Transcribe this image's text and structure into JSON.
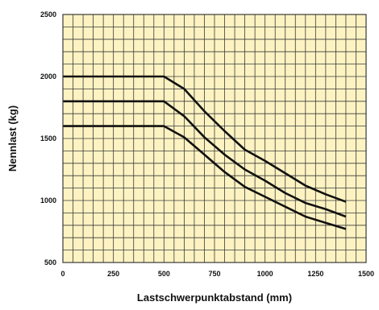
{
  "chart_data": {
    "type": "line",
    "title": "",
    "xlabel": "Lastschwerpunktabstand (mm)",
    "ylabel": "Nennlast (kg)",
    "xlim": [
      0,
      1500
    ],
    "ylim": [
      500,
      2500
    ],
    "x_ticks": [
      0,
      250,
      500,
      750,
      1000,
      1250,
      1500
    ],
    "y_ticks": [
      500,
      1000,
      1500,
      2000,
      2500
    ],
    "x_grid_step": 50,
    "y_grid_step": 100,
    "grid": true,
    "legend": "none",
    "series": [
      {
        "x": [
          0,
          500,
          600,
          700,
          800,
          900,
          1000,
          1100,
          1200,
          1300,
          1400
        ],
        "y": [
          2000,
          2000,
          1900,
          1720,
          1560,
          1410,
          1320,
          1220,
          1120,
          1050,
          990
        ]
      },
      {
        "x": [
          0,
          500,
          600,
          700,
          800,
          900,
          1000,
          1100,
          1200,
          1300,
          1400
        ],
        "y": [
          1800,
          1800,
          1680,
          1510,
          1370,
          1250,
          1160,
          1060,
          980,
          930,
          870
        ]
      },
      {
        "x": [
          0,
          500,
          600,
          700,
          800,
          900,
          1000,
          1100,
          1200,
          1300,
          1400
        ],
        "y": [
          1600,
          1600,
          1510,
          1370,
          1230,
          1110,
          1030,
          950,
          870,
          820,
          770
        ]
      }
    ]
  },
  "colors": {
    "plot_background": "#fdf3c2",
    "grid": "#3a3a3a",
    "series": "#111111",
    "text": "#111111"
  }
}
